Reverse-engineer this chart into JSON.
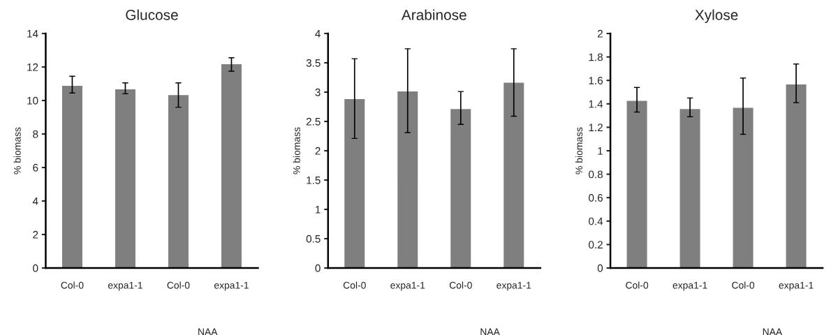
{
  "chart_data": [
    {
      "type": "bar",
      "title": "Glucose",
      "ylabel": "% biomass",
      "categories": [
        "Col-0",
        "expa1-1",
        "Col-0",
        "expa1-1"
      ],
      "values": [
        10.9,
        10.7,
        10.35,
        12.2
      ],
      "errors": [
        [
          10.45,
          11.45
        ],
        [
          10.4,
          11.05
        ],
        [
          9.6,
          11.05
        ],
        [
          11.75,
          12.55
        ]
      ],
      "color": "#7f7f7f",
      "ylim": [
        0,
        14
      ],
      "yticks": [
        0,
        2,
        4,
        6,
        8,
        10,
        12,
        14
      ],
      "grid": false,
      "annotations": [
        "NAA"
      ]
    },
    {
      "type": "bar",
      "title": "Arabinose",
      "ylabel": "% biomass",
      "categories": [
        "Col-0",
        "expa1-1",
        "Col-0",
        "expa1-1"
      ],
      "values": [
        2.89,
        3.02,
        2.72,
        3.17
      ],
      "errors": [
        [
          2.21,
          3.57
        ],
        [
          2.31,
          3.74
        ],
        [
          2.45,
          3.01
        ],
        [
          2.59,
          3.74
        ]
      ],
      "color": "#7f7f7f",
      "ylim": [
        0,
        4
      ],
      "yticks": [
        0,
        0.5,
        1,
        1.5,
        2,
        2.5,
        3,
        3.5,
        4
      ],
      "grid": false,
      "annotations": [
        "NAA"
      ]
    },
    {
      "type": "bar",
      "title": "Xylose",
      "ylabel": "% biomass",
      "categories": [
        "Col-0",
        "expa1-1",
        "Col-0",
        "expa1-1"
      ],
      "values": [
        1.43,
        1.36,
        1.37,
        1.57
      ],
      "errors": [
        [
          1.33,
          1.54
        ],
        [
          1.29,
          1.45
        ],
        [
          1.14,
          1.62
        ],
        [
          1.41,
          1.74
        ]
      ],
      "color": "#7f7f7f",
      "ylim": [
        0,
        2
      ],
      "yticks": [
        0,
        0.2,
        0.4,
        0.6,
        0.8,
        1,
        1.2,
        1.4,
        1.6,
        1.8,
        2
      ],
      "grid": false,
      "annotations": [
        "NAA"
      ]
    }
  ]
}
